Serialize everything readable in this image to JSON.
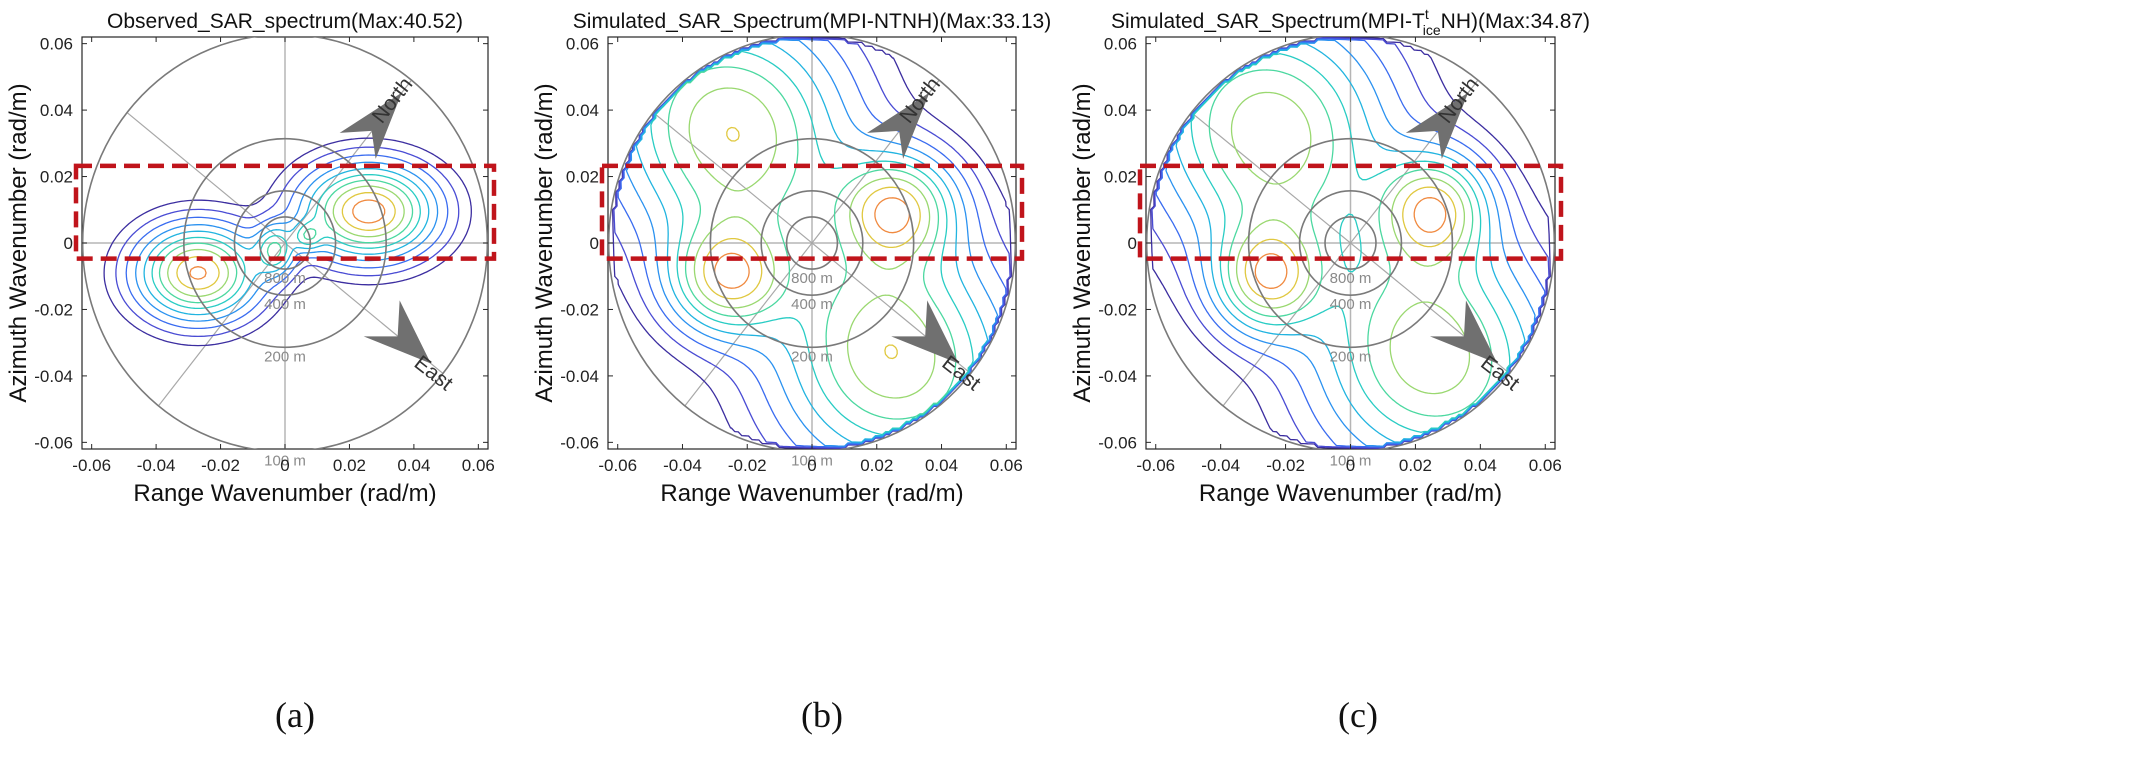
{
  "chart_data": [
    {
      "type": "contour",
      "panel_label": "(a)",
      "title": "Observed_SAR_spectrum(Max:40.52)",
      "xlabel": "Range Wavenumber (rad/m)",
      "ylabel": "Azimuth Wavenumber (rad/m)",
      "xlim": [
        -0.063,
        0.063
      ],
      "ylim": [
        -0.062,
        0.062
      ],
      "xticks": [
        -0.06,
        -0.04,
        -0.02,
        0,
        0.02,
        0.04,
        0.06
      ],
      "yticks": [
        -0.06,
        -0.04,
        -0.02,
        0,
        0.02,
        0.04,
        0.06
      ],
      "xtick_labels": [
        "-0.06",
        "-0.04",
        "-0.02",
        "0",
        "0.02",
        "0.04",
        "0.06"
      ],
      "ytick_labels": [
        "-0.06",
        "-0.04",
        "-0.02",
        "0",
        "0.02",
        "0.04",
        "0.06"
      ],
      "max_value": 40.52,
      "wavelength_rings": [
        {
          "label": "800 m",
          "radius": 0.00785
        },
        {
          "label": "400 m",
          "radius": 0.0157
        },
        {
          "label": "200 m",
          "radius": 0.0314
        },
        {
          "label": "100 m",
          "radius": 0.0628
        }
      ],
      "compass": {
        "north": "North",
        "east": "East"
      },
      "highlight_band": {
        "ymin": -0.0047,
        "ymax": 0.0232,
        "color": "#c0141b"
      },
      "peaks": [
        {
          "kx": 0.026,
          "ky": 0.0095,
          "spread": [
            0.013,
            0.009
          ],
          "weight": 1.0
        },
        {
          "kx": -0.027,
          "ky": -0.009,
          "spread": [
            0.012,
            0.009
          ],
          "weight": 0.95
        },
        {
          "kx": -0.003,
          "ky": -0.002,
          "spread": [
            0.004,
            0.005
          ],
          "weight": 0.5
        },
        {
          "kx": 0.007,
          "ky": 0.002,
          "spread": [
            0.003,
            0.003
          ],
          "weight": 0.35
        }
      ]
    },
    {
      "type": "contour",
      "panel_label": "(b)",
      "title": "Simulated_SAR_Spectrum(MPI-NTNH)(Max:33.13)",
      "xlabel": "Range Wavenumber (rad/m)",
      "ylabel": "Azimuth Wavenumber (rad/m)",
      "xlim": [
        -0.063,
        0.063
      ],
      "ylim": [
        -0.062,
        0.062
      ],
      "xticks": [
        -0.06,
        -0.04,
        -0.02,
        0,
        0.02,
        0.04,
        0.06
      ],
      "yticks": [
        -0.06,
        -0.04,
        -0.02,
        0,
        0.02,
        0.04,
        0.06
      ],
      "xtick_labels": [
        "-0.06",
        "-0.04",
        "-0.02",
        "0",
        "0.02",
        "0.04",
        "0.06"
      ],
      "ytick_labels": [
        "-0.06",
        "-0.04",
        "-0.02",
        "0",
        "0.02",
        "0.04",
        "0.06"
      ],
      "max_value": 33.13,
      "wavelength_rings": [
        {
          "label": "800 m",
          "radius": 0.00785
        },
        {
          "label": "400 m",
          "radius": 0.0157
        },
        {
          "label": "200 m",
          "radius": 0.0314
        },
        {
          "label": "100 m",
          "radius": 0.0628
        }
      ],
      "compass": {
        "north": "North",
        "east": "East"
      },
      "highlight_band": {
        "ymin": -0.0047,
        "ymax": 0.0232,
        "color": "#c0141b"
      },
      "peaks": [
        {
          "kx": 0.026,
          "ky": 0.0105,
          "spread": [
            0.012,
            0.011
          ],
          "weight": 1.0
        },
        {
          "kx": -0.026,
          "ky": -0.0105,
          "spread": [
            0.012,
            0.011
          ],
          "weight": 1.0
        },
        {
          "kx": -0.022,
          "ky": 0.024,
          "spread": [
            0.022,
            0.022
          ],
          "weight": 0.72
        },
        {
          "kx": 0.022,
          "ky": -0.024,
          "spread": [
            0.022,
            0.022
          ],
          "weight": 0.72
        },
        {
          "kx": -0.03,
          "ky": 0.045,
          "spread": [
            0.025,
            0.02
          ],
          "weight": 0.5
        },
        {
          "kx": 0.03,
          "ky": -0.045,
          "spread": [
            0.025,
            0.02
          ],
          "weight": 0.5
        }
      ]
    },
    {
      "type": "contour",
      "panel_label": "(c)",
      "title_parts": [
        "Simulated_SAR_Spectrum(MPI-T",
        "t",
        "ice",
        "NH)(Max:34.87)"
      ],
      "xlabel": "Range Wavenumber (rad/m)",
      "ylabel": "Azimuth Wavenumber (rad/m)",
      "xlim": [
        -0.063,
        0.063
      ],
      "ylim": [
        -0.062,
        0.062
      ],
      "xticks": [
        -0.06,
        -0.04,
        -0.02,
        0,
        0.02,
        0.04,
        0.06
      ],
      "yticks": [
        -0.06,
        -0.04,
        -0.02,
        0,
        0.02,
        0.04,
        0.06
      ],
      "xtick_labels": [
        "-0.06",
        "-0.04",
        "-0.02",
        "0",
        "0.02",
        "0.04",
        "0.06"
      ],
      "ytick_labels": [
        "-0.06",
        "-0.04",
        "-0.02",
        "0",
        "0.02",
        "0.04",
        "0.06"
      ],
      "max_value": 34.87,
      "wavelength_rings": [
        {
          "label": "800 m",
          "radius": 0.00785
        },
        {
          "label": "400 m",
          "radius": 0.0157
        },
        {
          "label": "200 m",
          "radius": 0.0314
        },
        {
          "label": "100 m",
          "radius": 0.0628
        }
      ],
      "compass": {
        "north": "North",
        "east": "East"
      },
      "highlight_band": {
        "ymin": -0.0047,
        "ymax": 0.0232,
        "color": "#c0141b"
      },
      "peaks": [
        {
          "kx": 0.0255,
          "ky": 0.0105,
          "spread": [
            0.011,
            0.011
          ],
          "weight": 1.0
        },
        {
          "kx": -0.0255,
          "ky": -0.0105,
          "spread": [
            0.011,
            0.011
          ],
          "weight": 1.0
        },
        {
          "kx": -0.022,
          "ky": 0.024,
          "spread": [
            0.022,
            0.022
          ],
          "weight": 0.7
        },
        {
          "kx": 0.022,
          "ky": -0.024,
          "spread": [
            0.022,
            0.022
          ],
          "weight": 0.7
        },
        {
          "kx": -0.03,
          "ky": 0.045,
          "spread": [
            0.025,
            0.02
          ],
          "weight": 0.48
        },
        {
          "kx": 0.03,
          "ky": -0.045,
          "spread": [
            0.025,
            0.02
          ],
          "weight": 0.48
        }
      ]
    }
  ],
  "contour_levels": [
    0.05,
    0.1,
    0.17,
    0.26,
    0.36,
    0.47,
    0.58,
    0.7,
    0.82,
    0.93
  ],
  "contour_colors": [
    "#3c2ea0",
    "#4a4cd4",
    "#3a6cf0",
    "#2b92f0",
    "#22b4e0",
    "#29ccc4",
    "#4cd8a0",
    "#9ad870",
    "#e0c840",
    "#f08a40"
  ]
}
